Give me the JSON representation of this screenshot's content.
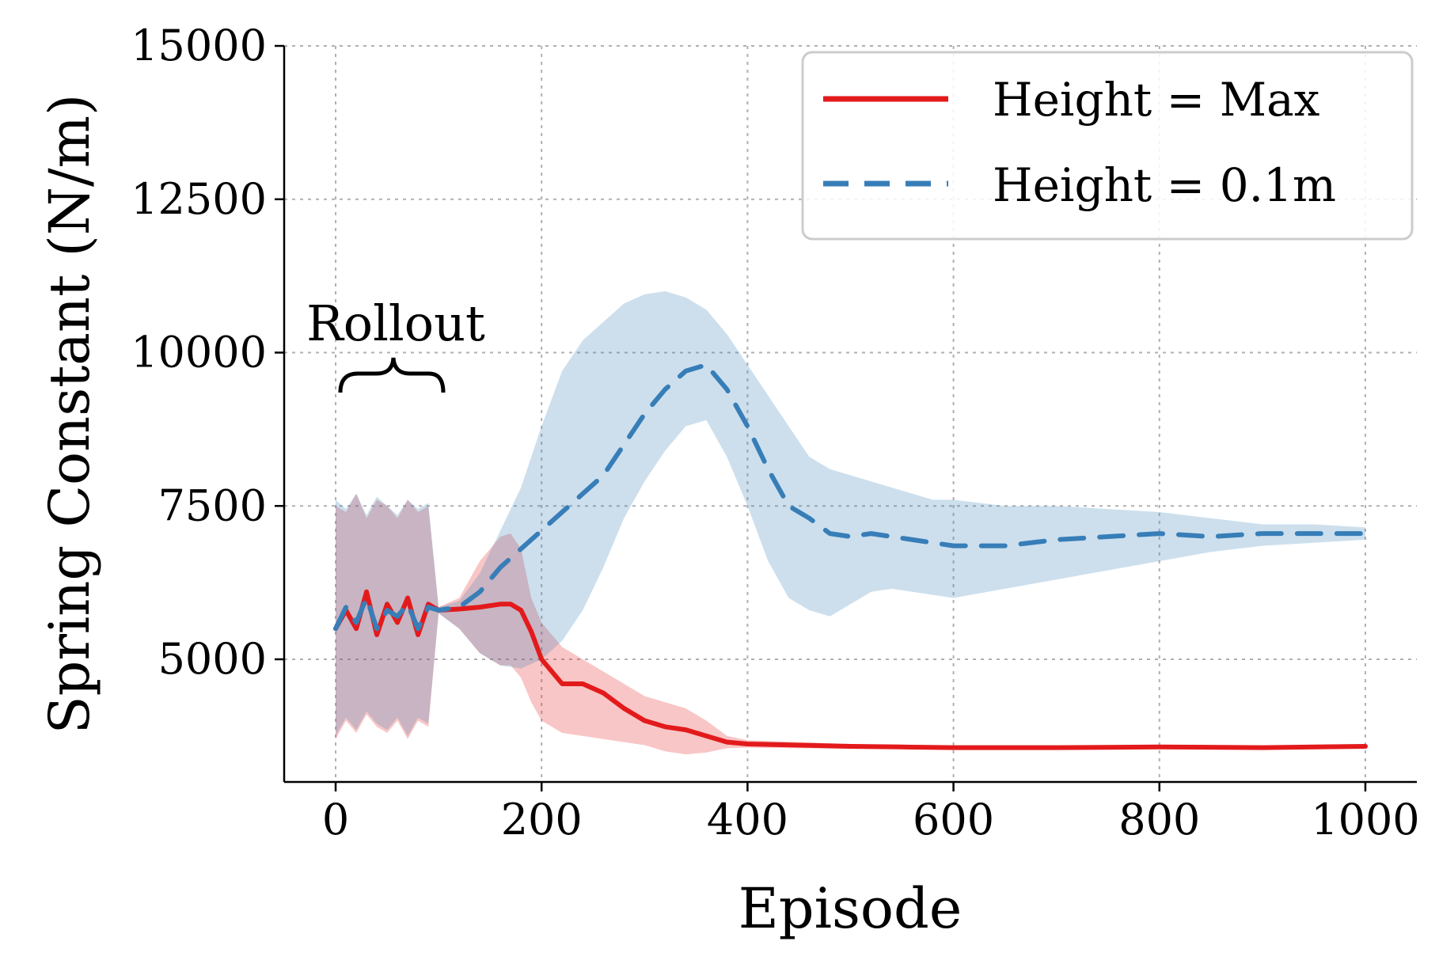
{
  "chart_data": {
    "type": "line",
    "title": "",
    "xlabel": "Episode",
    "ylabel": "Spring Constant (N/m)",
    "xlim": [
      -50,
      1050
    ],
    "ylim": [
      3000,
      15000
    ],
    "x_ticks": [
      0,
      200,
      400,
      600,
      800,
      1000
    ],
    "y_ticks": [
      5000,
      7500,
      10000,
      12500,
      15000
    ],
    "grid": true,
    "legend_position": "top-right",
    "annotations": [
      {
        "text": "Rollout",
        "x_range": [
          0,
          100
        ],
        "marker": "curly-brace"
      }
    ],
    "series": [
      {
        "name": "Height = Max",
        "color": "#e31a1c",
        "line_style": "solid",
        "band_opacity": 0.25,
        "x": [
          0,
          10,
          20,
          30,
          40,
          50,
          60,
          70,
          80,
          90,
          100,
          120,
          140,
          160,
          170,
          180,
          190,
          200,
          220,
          240,
          260,
          280,
          300,
          320,
          340,
          360,
          380,
          400,
          450,
          500,
          550,
          600,
          700,
          800,
          900,
          1000
        ],
        "y": [
          5500,
          5800,
          5500,
          6100,
          5400,
          5900,
          5600,
          6000,
          5400,
          5900,
          5800,
          5820,
          5850,
          5900,
          5900,
          5800,
          5450,
          5000,
          4600,
          4600,
          4450,
          4200,
          4000,
          3900,
          3850,
          3750,
          3650,
          3620,
          3600,
          3580,
          3570,
          3560,
          3560,
          3570,
          3560,
          3580
        ],
        "upper": [
          7500,
          7400,
          7700,
          7300,
          7600,
          7500,
          7300,
          7600,
          7400,
          7500,
          5850,
          6000,
          6600,
          7000,
          7050,
          6800,
          6000,
          5600,
          5200,
          5000,
          4800,
          4600,
          4400,
          4300,
          4200,
          4000,
          3750,
          3680,
          3650,
          3620,
          3600,
          3590,
          3580,
          3590,
          3580,
          3600
        ],
        "lower": [
          3700,
          4000,
          3800,
          4100,
          3900,
          3800,
          4000,
          3700,
          4000,
          3900,
          5750,
          5500,
          5100,
          4900,
          4900,
          4700,
          4300,
          4000,
          3800,
          3750,
          3700,
          3650,
          3600,
          3500,
          3450,
          3480,
          3550,
          3560,
          3550,
          3540,
          3540,
          3530,
          3540,
          3550,
          3540,
          3560
        ]
      },
      {
        "name": "Height = 0.1m",
        "color": "#377eb8",
        "line_style": "dashed",
        "band_opacity": 0.25,
        "x": [
          0,
          10,
          20,
          30,
          40,
          50,
          60,
          70,
          80,
          90,
          100,
          120,
          140,
          160,
          180,
          200,
          220,
          240,
          260,
          280,
          300,
          320,
          340,
          360,
          380,
          400,
          420,
          440,
          460,
          480,
          500,
          520,
          540,
          560,
          580,
          600,
          650,
          700,
          750,
          800,
          850,
          900,
          950,
          1000
        ],
        "y": [
          5500,
          5850,
          5600,
          6000,
          5500,
          5800,
          5700,
          5900,
          5500,
          5850,
          5800,
          5850,
          6100,
          6500,
          6800,
          7100,
          7400,
          7700,
          8000,
          8500,
          9000,
          9400,
          9700,
          9800,
          9400,
          8800,
          8100,
          7500,
          7300,
          7050,
          7000,
          7050,
          7000,
          6950,
          6900,
          6850,
          6850,
          6950,
          7000,
          7050,
          7000,
          7050,
          7050,
          7050
        ],
        "upper": [
          7600,
          7450,
          7700,
          7350,
          7650,
          7500,
          7350,
          7600,
          7450,
          7550,
          5850,
          5950,
          6400,
          7100,
          7800,
          8800,
          9700,
          10200,
          10500,
          10800,
          10950,
          11000,
          10900,
          10700,
          10300,
          9800,
          9300,
          8800,
          8300,
          8100,
          8000,
          7900,
          7800,
          7700,
          7600,
          7600,
          7500,
          7500,
          7450,
          7400,
          7300,
          7200,
          7200,
          7150
        ],
        "lower": [
          3750,
          4050,
          3850,
          4150,
          3950,
          3850,
          4050,
          3750,
          4050,
          3950,
          5750,
          5500,
          5100,
          4900,
          4850,
          5000,
          5300,
          5800,
          6500,
          7300,
          7900,
          8400,
          8800,
          8900,
          8300,
          7500,
          6600,
          6000,
          5800,
          5700,
          5900,
          6100,
          6150,
          6100,
          6050,
          6000,
          6150,
          6300,
          6450,
          6600,
          6750,
          6850,
          6900,
          6950
        ]
      }
    ]
  }
}
